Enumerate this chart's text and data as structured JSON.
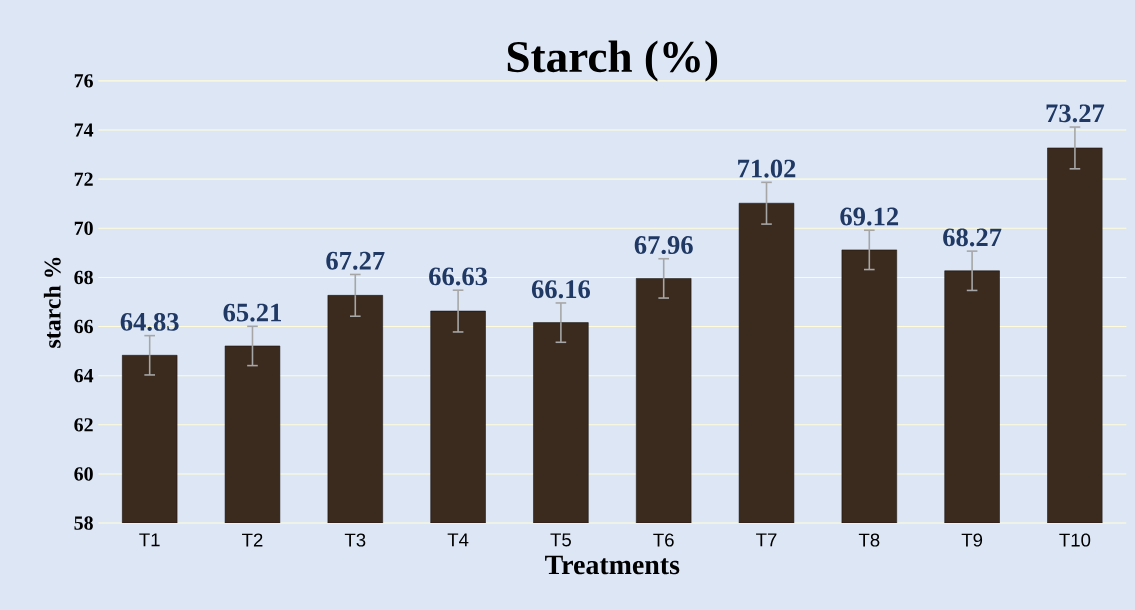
{
  "chart_data": {
    "type": "bar",
    "title": "Starch (%)",
    "xlabel": "Treatments",
    "ylabel": "starch %",
    "categories": [
      "T1",
      "T2",
      "T3",
      "T4",
      "T5",
      "T6",
      "T7",
      "T8",
      "T9",
      "T10"
    ],
    "values": [
      64.83,
      65.21,
      67.27,
      66.63,
      66.16,
      67.96,
      71.02,
      69.12,
      68.27,
      73.27
    ],
    "errors": [
      0.8,
      0.8,
      0.85,
      0.85,
      0.8,
      0.8,
      0.85,
      0.8,
      0.8,
      0.85
    ],
    "color": "#3b2a1e",
    "data_labels": true,
    "ylim": [
      58,
      76
    ],
    "yticks": [
      58,
      60,
      62,
      64,
      66,
      68,
      70,
      72,
      74,
      76
    ],
    "grid": "y"
  }
}
